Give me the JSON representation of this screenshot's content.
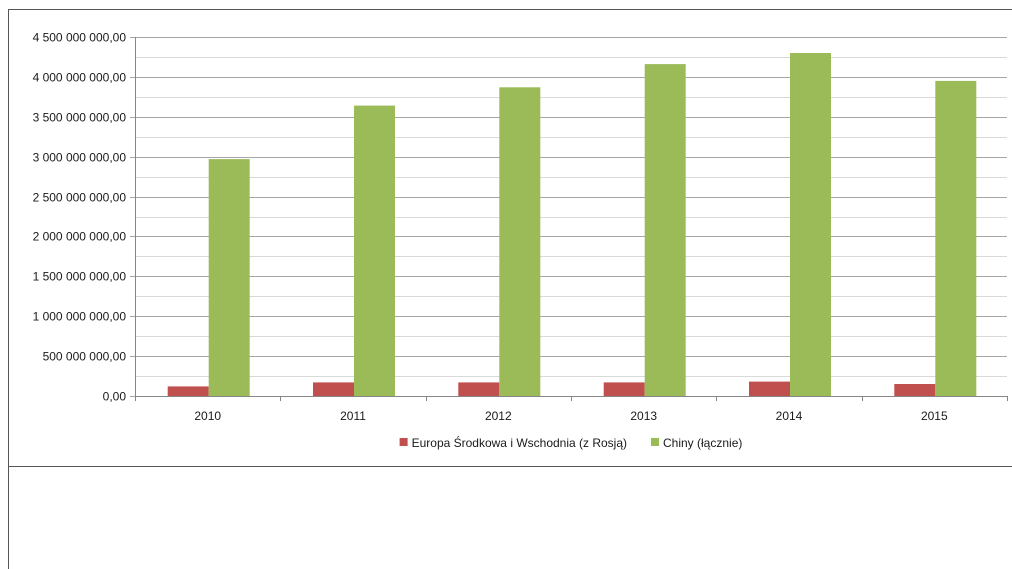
{
  "chart_data": {
    "type": "bar",
    "categories": [
      "2010",
      "2011",
      "2012",
      "2013",
      "2014",
      "2015"
    ],
    "series": [
      {
        "name": "Europa Środkowa i Wschodnia (z Rosją)",
        "color": "#c0504d",
        "values": [
          120000000,
          170000000,
          170000000,
          170000000,
          180000000,
          150000000
        ]
      },
      {
        "name": "Chiny (łącznie)",
        "color": "#9bbb59",
        "values": [
          2970000000,
          3640000000,
          3870000000,
          4160000000,
          4300000000,
          3950000000
        ]
      }
    ],
    "ylim": [
      0,
      4500000000
    ],
    "yticks": [
      0,
      500000000,
      1000000000,
      1500000000,
      2000000000,
      2500000000,
      3000000000,
      3500000000,
      4000000000,
      4500000000
    ],
    "ytick_labels": [
      "0,00",
      "500 000 000,00",
      "1 000 000 000,00",
      "1 500 000 000,00",
      "2 000 000 000,00",
      "2 500 000 000,00",
      "3 000 000 000,00",
      "3 500 000 000,00",
      "4 000 000 000,00",
      "4 500 000 000,00"
    ],
    "grid": true,
    "minor_grid": true,
    "legend": "bottom",
    "title": "",
    "xlabel": "",
    "ylabel": ""
  }
}
